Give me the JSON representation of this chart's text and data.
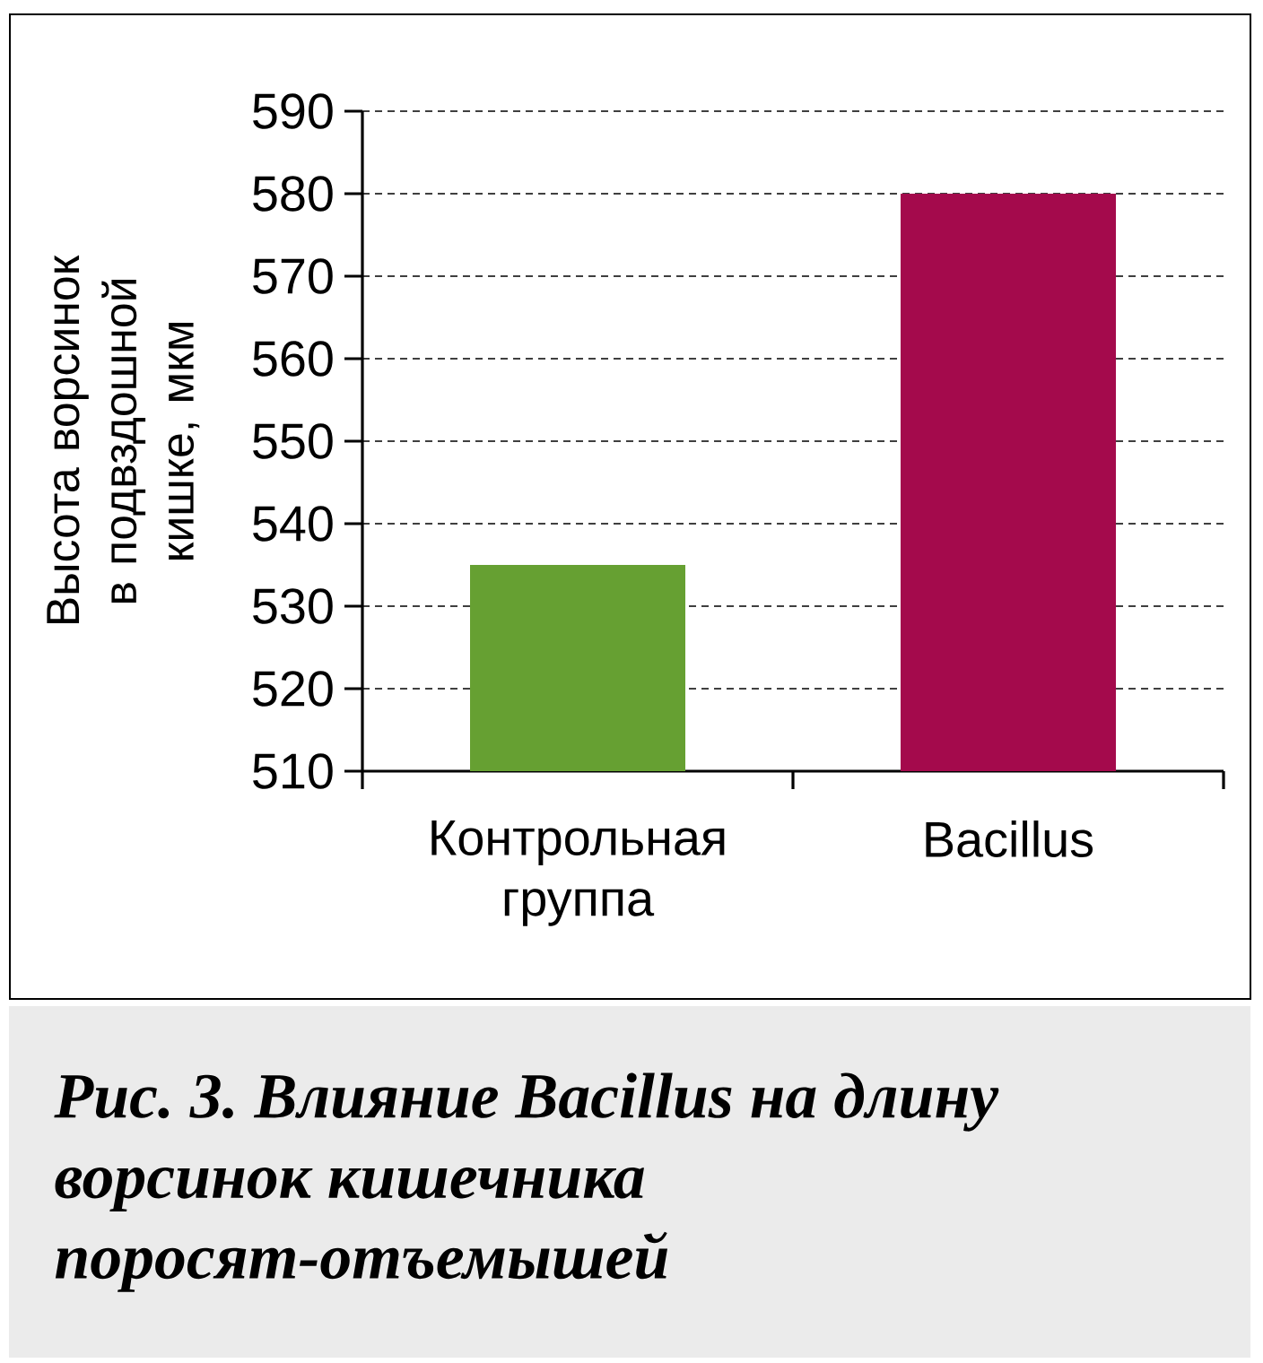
{
  "chart_data": {
    "type": "bar",
    "categories": [
      "Контрольная группа",
      "Bacillus"
    ],
    "values": [
      535,
      580
    ],
    "colors": [
      "#66a032",
      "#a40a4c"
    ],
    "ylabel": "Высота ворсинок в подвздошной кишке, мкм",
    "ylim": [
      510,
      590
    ],
    "yticks": [
      510,
      520,
      530,
      540,
      550,
      560,
      570,
      580,
      590
    ],
    "grid": "y",
    "annotations": [
      "Рис. 3. Влияние Bacillus на длину ворсинок кишечника поросят-отъемышей"
    ]
  }
}
